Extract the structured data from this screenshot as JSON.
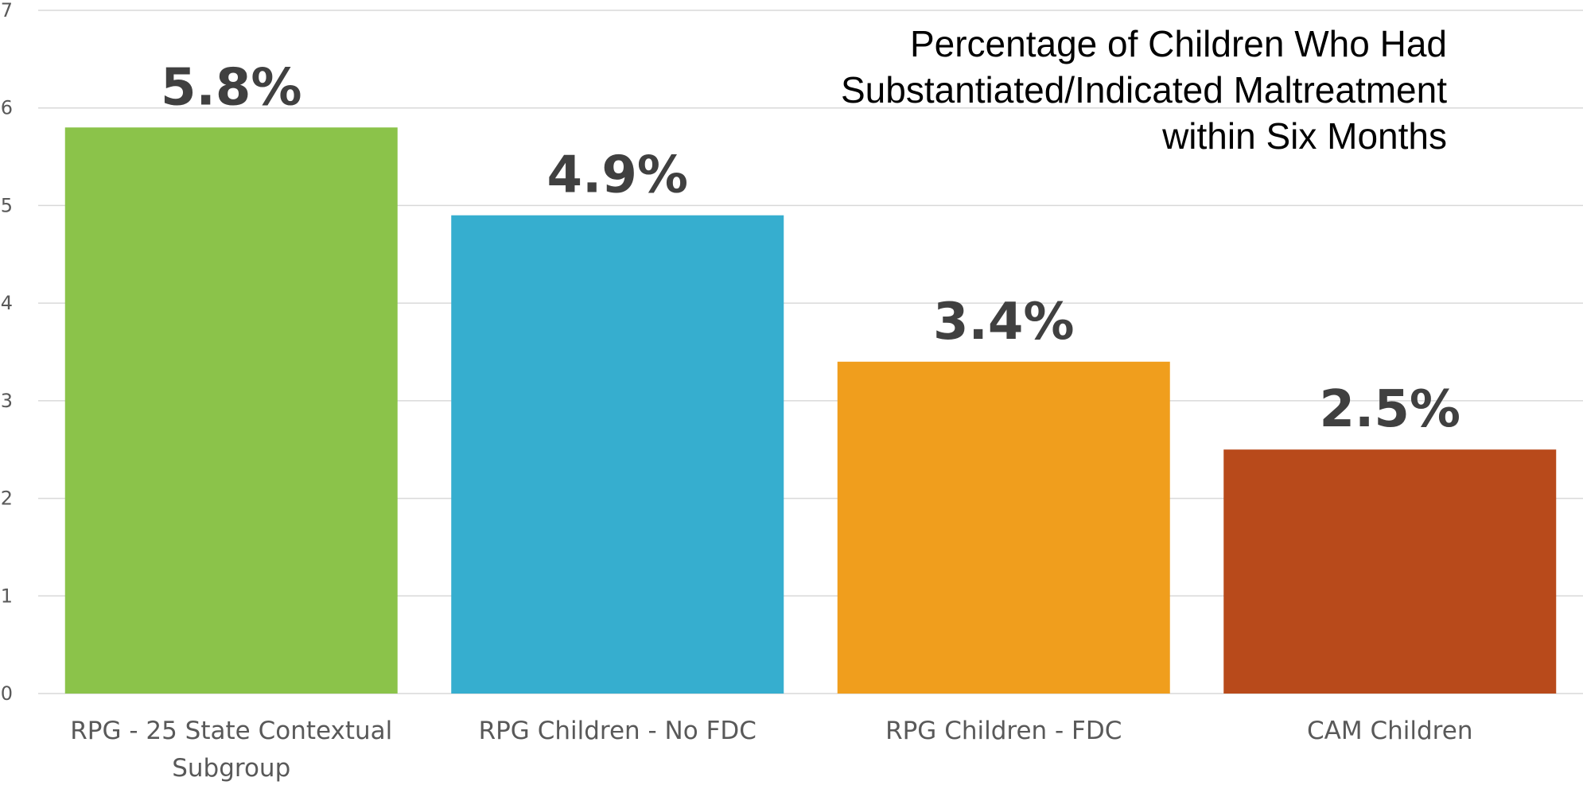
{
  "chart_data": {
    "type": "bar",
    "title_lines": [
      "Percentage of Children Who Had",
      "Substantiated/Indicated Maltreatment",
      "within Six Months"
    ],
    "categories": [
      [
        "RPG - 25 State Contextual",
        "Subgroup"
      ],
      [
        "RPG Children - No FDC"
      ],
      [
        "RPG Children - FDC"
      ],
      [
        "CAM Children"
      ]
    ],
    "values": [
      5.8,
      4.9,
      3.4,
      2.5
    ],
    "data_labels": [
      "5.8%",
      "4.9%",
      "3.4%",
      "2.5%"
    ],
    "colors": [
      "#8BC34A",
      "#36AECF",
      "#F09E1D",
      "#B84A1B"
    ],
    "ylim": [
      0,
      7
    ],
    "yticks": [
      "0",
      "1",
      "2",
      "3",
      "4",
      "5",
      "6",
      "7"
    ],
    "grid": true,
    "legend": "none"
  }
}
